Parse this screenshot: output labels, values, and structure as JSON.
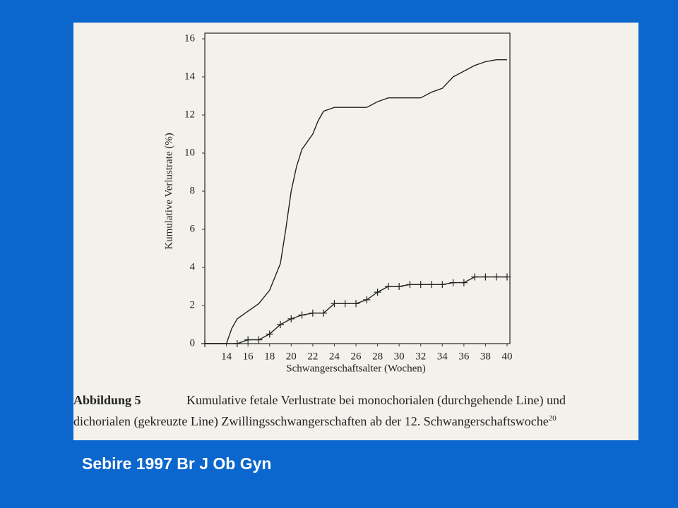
{
  "chart_data": {
    "type": "line",
    "ylabel": "Kumulative Verlustrate (%)",
    "xlabel": "Schwangerschaftsalter (Wochen)",
    "caption_label": "Abbildung 5",
    "caption_lines": [
      "Kumulative fetale Verlustrate bei monochorialen (durchgehende Line) und",
      "dichorialen (gekreuzte Line) Zwillingsschwangerschaften ab der 12. Schwangerschaftswoche"
    ],
    "caption_superscript": "20",
    "xlim": [
      12,
      40
    ],
    "ylim": [
      0,
      16
    ],
    "xticks": [
      14,
      16,
      18,
      20,
      22,
      24,
      26,
      28,
      30,
      32,
      34,
      36,
      38,
      40
    ],
    "yticks": [
      0,
      2,
      4,
      6,
      8,
      10,
      12,
      14,
      16
    ],
    "series": [
      {
        "color": "#222222",
        "marker": "none",
        "x": [
          12,
          14,
          14.5,
          15,
          16,
          17,
          18,
          19,
          19.5,
          20,
          20.5,
          21,
          22,
          22.5,
          23,
          24,
          26,
          27,
          28,
          29,
          30,
          32,
          33,
          34,
          35,
          36,
          37,
          38,
          39,
          40
        ],
        "values": [
          0,
          0,
          0.8,
          1.3,
          1.7,
          2.1,
          2.8,
          4.2,
          6,
          8,
          9.3,
          10.2,
          11,
          11.7,
          12.2,
          12.4,
          12.4,
          12.4,
          12.7,
          12.9,
          12.9,
          12.9,
          13.2,
          13.4,
          14,
          14.3,
          14.6,
          14.8,
          14.9,
          14.9
        ]
      },
      {
        "color": "#222222",
        "marker": "cross",
        "x": [
          12,
          15,
          16,
          17,
          18,
          19,
          20,
          21,
          22,
          23,
          24,
          25,
          26,
          27,
          28,
          29,
          30,
          31,
          32,
          33,
          34,
          35,
          36,
          37,
          38,
          39,
          40
        ],
        "values": [
          0,
          0,
          0.2,
          0.2,
          0.5,
          1,
          1.3,
          1.5,
          1.6,
          1.6,
          2.1,
          2.1,
          2.1,
          2.3,
          2.7,
          3,
          3,
          3.1,
          3.1,
          3.1,
          3.1,
          3.2,
          3.2,
          3.5,
          3.5,
          3.5,
          3.5
        ]
      }
    ]
  },
  "source": "Sebire 1997 Br J Ob Gyn"
}
